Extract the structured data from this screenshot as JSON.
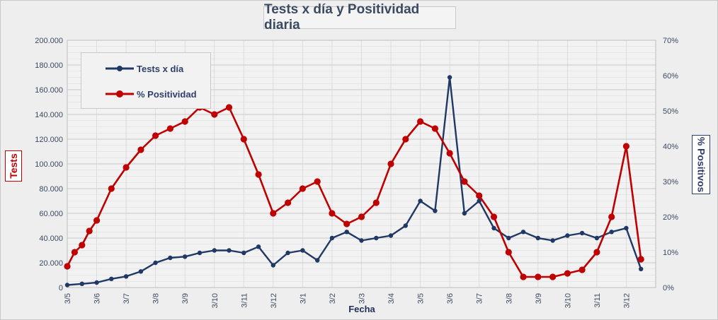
{
  "title": "Tests x día y Positividad diaria",
  "chart_data": {
    "type": "line",
    "title": "Tests x día y Positividad diaria",
    "xlabel": "Fecha",
    "ylabel_left": "Tests",
    "ylabel_right": "% Positivos",
    "ylim_left": [
      0,
      200000
    ],
    "ylim_right": [
      0,
      70
    ],
    "y_left_ticks": [
      "0",
      "20.000",
      "40.000",
      "60.000",
      "80.000",
      "100.000",
      "120.000",
      "140.000",
      "160.000",
      "180.000",
      "200.000"
    ],
    "y_right_ticks": [
      "0%",
      "10%",
      "20%",
      "30%",
      "40%",
      "50%",
      "60%",
      "70%"
    ],
    "x_tick_labels": [
      "3/5",
      "3/6",
      "3/7",
      "3/8",
      "3/9",
      "3/10",
      "3/11",
      "3/12",
      "3/1",
      "3/2",
      "3/3",
      "3/4",
      "3/5",
      "3/6",
      "3/7",
      "3/8",
      "3/9",
      "3/10",
      "3/11",
      "3/12"
    ],
    "grid": true,
    "legend_position": "top-left",
    "colors": {
      "tests": "#1f3864",
      "positividad": "#c00000",
      "plot_bg": "#f2f2f2",
      "grid": "#c8c8c8",
      "tick_text": "#3b4a60"
    },
    "series": [
      {
        "name": "Tests x día",
        "axis": "left",
        "x": [
          0,
          0.5,
          1,
          1.5,
          2,
          2.5,
          3,
          3.5,
          4,
          4.5,
          5,
          5.5,
          6,
          6.5,
          7,
          7.5,
          8,
          8.5,
          9,
          9.5,
          10,
          10.5,
          11,
          11.5,
          12,
          12.5,
          13,
          13.5,
          14,
          14.5,
          15,
          15.5,
          16,
          16.5,
          17,
          17.5,
          18,
          18.5,
          19,
          19.5
        ],
        "values": [
          2000,
          3000,
          4000,
          7000,
          9000,
          13000,
          20000,
          24000,
          25000,
          28000,
          30000,
          30000,
          28000,
          33000,
          18000,
          28000,
          30000,
          22000,
          40000,
          45000,
          38000,
          40000,
          42000,
          50000,
          70000,
          62000,
          170000,
          60000,
          70000,
          48000,
          40000,
          45000,
          40000,
          38000,
          42000,
          44000,
          40000,
          45000,
          48000,
          15000
        ]
      },
      {
        "name": "% Positividad",
        "axis": "right",
        "x": [
          0,
          0.25,
          0.5,
          0.75,
          1,
          1.5,
          2,
          2.5,
          3,
          3.5,
          4,
          4.5,
          5,
          5.5,
          6,
          6.5,
          7,
          7.5,
          8,
          8.5,
          9,
          9.5,
          10,
          10.5,
          11,
          11.5,
          12,
          12.5,
          13,
          13.5,
          14,
          14.5,
          15,
          15.5,
          16,
          16.5,
          17,
          17.5,
          18,
          18.5,
          19,
          19.5
        ],
        "values": [
          6,
          10,
          12,
          16,
          19,
          28,
          34,
          39,
          43,
          45,
          47,
          51,
          49,
          51,
          42,
          32,
          21,
          24,
          28,
          30,
          21,
          18,
          20,
          24,
          35,
          42,
          47,
          45,
          38,
          30,
          26,
          20,
          10,
          3,
          3,
          3,
          4,
          5,
          10,
          20,
          40,
          8
        ]
      }
    ]
  },
  "legend": {
    "tests_label": "Tests x día",
    "positividad_label": "% Positividad"
  }
}
